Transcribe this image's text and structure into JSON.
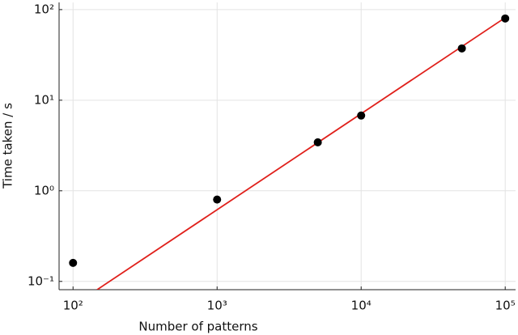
{
  "chart_data": {
    "type": "scatter",
    "xlabel": "Number of patterns",
    "ylabel": "Time taken / s",
    "xscale": "log",
    "yscale": "log",
    "grid": true,
    "xlim": [
      80,
      118000
    ],
    "ylim": [
      0.081,
      120
    ],
    "xticks": [
      {
        "value": 100,
        "label": "10²"
      },
      {
        "value": 1000,
        "label": "10³"
      },
      {
        "value": 10000,
        "label": "10⁴"
      },
      {
        "value": 100000,
        "label": "10⁵"
      }
    ],
    "yticks": [
      {
        "value": 0.1,
        "label": "10⁻¹"
      },
      {
        "value": 1,
        "label": "10⁰"
      },
      {
        "value": 10,
        "label": "10¹"
      },
      {
        "value": 100,
        "label": "10²"
      }
    ],
    "x": [
      100,
      1000,
      5000,
      10000,
      50000,
      100000
    ],
    "values": [
      0.16,
      0.8,
      3.43,
      6.77,
      37.3,
      79.8
    ],
    "color": "#000000",
    "line": {
      "x": [
        147,
        100000
      ],
      "values": [
        0.081,
        81.5
      ],
      "color": "#e0201b"
    }
  }
}
